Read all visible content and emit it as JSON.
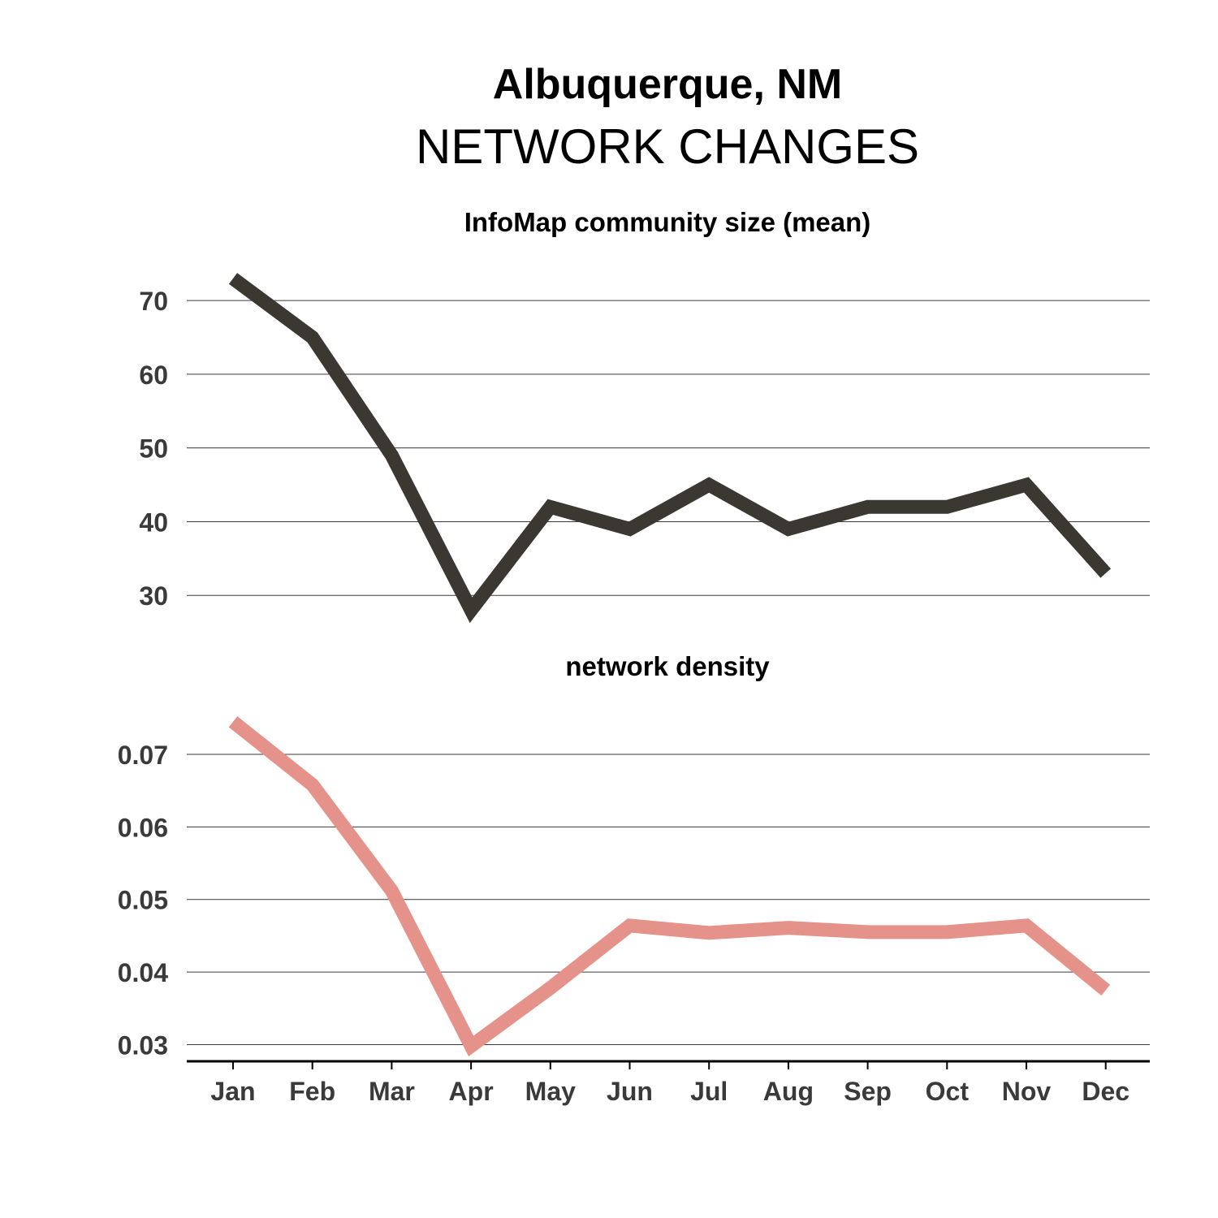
{
  "header": {
    "title": "Albuquerque, NM",
    "subtitle": "NETWORK CHANGES"
  },
  "chart_data": [
    {
      "type": "line",
      "title": "InfoMap community size (mean)",
      "xlabel": "",
      "ylabel": "",
      "x": [
        "Jan",
        "Feb",
        "Mar",
        "Apr",
        "May",
        "Jun",
        "Jul",
        "Aug",
        "Sep",
        "Oct",
        "Nov",
        "Dec"
      ],
      "series": [
        {
          "values": [
            73,
            65,
            49,
            28,
            42,
            39,
            45,
            39,
            42,
            42,
            45,
            33
          ],
          "color": "#3b3832"
        }
      ],
      "yticks": [
        30,
        40,
        50,
        60,
        70
      ],
      "ytick_labels": [
        "30",
        "40",
        "50",
        "60",
        "70"
      ],
      "ylim": [
        27.6,
        75.3
      ],
      "grid": "horizontal",
      "legend": "none"
    },
    {
      "type": "line",
      "title": "network density",
      "xlabel": "",
      "ylabel": "",
      "x": [
        "Jan",
        "Feb",
        "Mar",
        "Apr",
        "May",
        "Jun",
        "Jul",
        "Aug",
        "Sep",
        "Oct",
        "Nov",
        "Dec"
      ],
      "series": [
        {
          "values": [
            0.0745,
            0.0658,
            0.0512,
            0.0298,
            0.0378,
            0.0464,
            0.0454,
            0.0461,
            0.0455,
            0.0455,
            0.0464,
            0.0375
          ],
          "color": "#e5938a"
        }
      ],
      "yticks": [
        0.03,
        0.04,
        0.05,
        0.06,
        0.07
      ],
      "ytick_labels": [
        "0.03",
        "0.04",
        "0.05",
        "0.06",
        "0.07"
      ],
      "ylim": [
        0.0277,
        0.0775
      ],
      "grid": "horizontal",
      "legend": "none"
    }
  ]
}
